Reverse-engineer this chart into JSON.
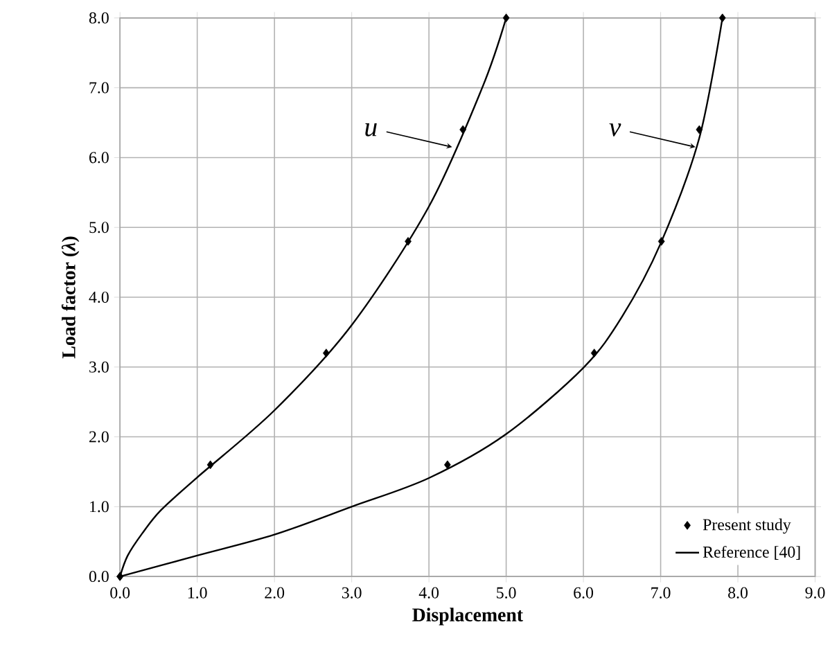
{
  "chart_data": {
    "type": "scatter",
    "xlabel": "Displacement",
    "ylabel": "Load factor (*λ*)",
    "xlim": [
      0,
      9
    ],
    "ylim": [
      0,
      8
    ],
    "xticks": [
      {
        "value": 0,
        "label": "0.0"
      },
      {
        "value": 1,
        "label": "1.0"
      },
      {
        "value": 2,
        "label": "2.0"
      },
      {
        "value": 3,
        "label": "3.0"
      },
      {
        "value": 4,
        "label": "4.0"
      },
      {
        "value": 5,
        "label": "5.0"
      },
      {
        "value": 6,
        "label": "6.0"
      },
      {
        "value": 7,
        "label": "7.0"
      },
      {
        "value": 8,
        "label": "8.0"
      },
      {
        "value": 9,
        "label": "9.0"
      }
    ],
    "yticks": [
      {
        "value": 0,
        "label": "0.0"
      },
      {
        "value": 1,
        "label": "1.0"
      },
      {
        "value": 2,
        "label": "2.0"
      },
      {
        "value": 3,
        "label": "3.0"
      },
      {
        "value": 4,
        "label": "4.0"
      },
      {
        "value": 5,
        "label": "5.0"
      },
      {
        "value": 6,
        "label": "6.0"
      },
      {
        "value": 7,
        "label": "7.0"
      },
      {
        "value": 8,
        "label": "8.0"
      }
    ],
    "grid": true,
    "legend": "bottom right",
    "series": [
      {
        "name": "Present study",
        "marker": "diamond",
        "color": "#000000",
        "x": [
          0,
          1.17,
          2.67,
          3.73,
          4.44,
          5.0
        ],
        "values": [
          0,
          1.6,
          3.2,
          4.8,
          6.4,
          8.0
        ]
      },
      {
        "marker": "diamond",
        "color": "#000000",
        "x": [
          0,
          4.24,
          6.14,
          7.01,
          7.5,
          7.8
        ],
        "values": [
          0,
          1.6,
          3.2,
          4.8,
          6.4,
          8.0
        ]
      },
      {
        "name": "Reference [40]",
        "type": "line",
        "marker": "none",
        "line_style": "solid",
        "color": "#000000",
        "x": [
          0,
          0.1,
          0.29,
          0.53,
          1.0,
          2.0,
          3.0,
          4.0,
          4.69,
          5.0
        ],
        "values": [
          0,
          0.3,
          0.62,
          0.95,
          1.42,
          2.38,
          3.6,
          5.3,
          7.0,
          8.0
        ]
      },
      {
        "type": "line",
        "marker": "none",
        "line_style": "solid",
        "color": "#000000",
        "x": [
          0,
          1.0,
          2.0,
          3.0,
          4.0,
          5.0,
          6.0,
          6.5,
          7.0,
          7.5,
          7.8
        ],
        "values": [
          0,
          0.3,
          0.6,
          1.0,
          1.41,
          2.04,
          2.99,
          3.72,
          4.77,
          6.28,
          8.0
        ]
      }
    ],
    "annotations": [
      {
        "text": "u",
        "x": 4.3,
        "y": 6.15
      },
      {
        "text": "v",
        "x": 7.45,
        "y": 6.15
      }
    ]
  }
}
